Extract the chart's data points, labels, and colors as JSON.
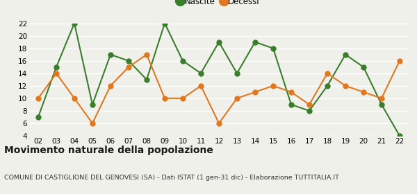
{
  "years": [
    "02",
    "03",
    "04",
    "05",
    "06",
    "07",
    "08",
    "09",
    "10",
    "11",
    "12",
    "13",
    "14",
    "15",
    "16",
    "17",
    "18",
    "19",
    "20",
    "21",
    "22"
  ],
  "nascite": [
    7,
    15,
    22,
    9,
    17,
    16,
    13,
    22,
    16,
    14,
    19,
    14,
    19,
    18,
    9,
    8,
    12,
    17,
    15,
    9,
    4
  ],
  "decessi": [
    10,
    14,
    10,
    6,
    12,
    15,
    17,
    10,
    10,
    12,
    6,
    10,
    11,
    12,
    11,
    9,
    14,
    12,
    11,
    10,
    16
  ],
  "nascite_color": "#3a7d2c",
  "decessi_color": "#e07820",
  "background_color": "#f0f0eb",
  "grid_color": "#ffffff",
  "title": "Movimento naturale della popolazione",
  "subtitle": "COMUNE DI CASTIGLIONE DEL GENOVESI (SA) - Dati ISTAT (1 gen-31 dic) - Elaborazione TUTTITALIA.IT",
  "ylim": [
    4,
    22
  ],
  "yticks": [
    4,
    6,
    8,
    10,
    12,
    14,
    16,
    18,
    20,
    22
  ],
  "legend_nascite": "Nascite",
  "legend_decessi": "Decessi",
  "title_fontsize": 10,
  "subtitle_fontsize": 6.8,
  "tick_fontsize": 7.5,
  "legend_fontsize": 8.5,
  "marker_size": 5,
  "line_width": 1.5
}
